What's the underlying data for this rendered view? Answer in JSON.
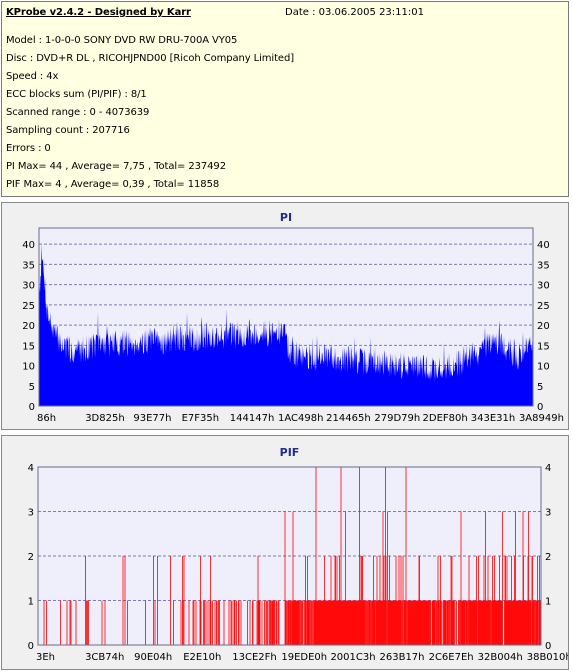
{
  "header": {
    "app_title": "KProbe v2.4.2 - Designed by Karr",
    "date": "Date : 03.06.2005 23:11:01"
  },
  "info_lines": [
    "Model : 1-0-0-0 SONY     DVD RW DRU-700A  VY05",
    "Disc : DVD+R DL , RICOHJPND00 [Ricoh Company Limited]",
    "Speed : 4x",
    "ECC blocks sum (PI/PIF) : 8/1",
    "Scanned range : 0 - 4073639",
    "Sampling count : 207716",
    "Errors : 0",
    "PI Max= 44 , Average= 7,75 , Total= 237492",
    "PIF Max= 4 , Average= 0,39 , Total= 11858"
  ],
  "colors": {
    "pi_fill": "#0000ff",
    "pif_fill": "#ff0000",
    "plot_bg": "#efeffb",
    "grid": "#7b7bbd",
    "panel_bg": "#f0f0f0",
    "info_bg": "#ffffe1",
    "title": "#1f2e8c"
  },
  "chart_data": [
    {
      "type": "area",
      "title": "PI",
      "xlabel": "",
      "ylabel": "",
      "ylim": [
        0,
        44
      ],
      "yticks": [
        0,
        5,
        10,
        15,
        20,
        25,
        30,
        35,
        40
      ],
      "xtick_labels": [
        "86h",
        "3D825h",
        "93E77h",
        "E7F35h",
        "144147h",
        "1AC498h",
        "214465h",
        "279D79h",
        "2DEF80h",
        "343E31h",
        "3A8949h"
      ],
      "grid": true,
      "legend": "none",
      "series": [
        {
          "profile": [
            [
              0.0,
              27
            ],
            [
              0.005,
              37
            ],
            [
              0.01,
              33
            ],
            [
              0.016,
              24
            ],
            [
              0.025,
              20
            ],
            [
              0.035,
              17
            ],
            [
              0.05,
              15
            ],
            [
              0.065,
              13.5
            ],
            [
              0.085,
              14
            ],
            [
              0.11,
              15
            ],
            [
              0.14,
              15.5
            ],
            [
              0.18,
              15.5
            ],
            [
              0.22,
              16
            ],
            [
              0.26,
              16
            ],
            [
              0.3,
              16.5
            ],
            [
              0.34,
              17
            ],
            [
              0.38,
              17.5
            ],
            [
              0.42,
              17.5
            ],
            [
              0.46,
              18
            ],
            [
              0.5,
              18
            ],
            [
              0.505,
              13
            ],
            [
              0.55,
              12
            ],
            [
              0.6,
              12
            ],
            [
              0.65,
              11
            ],
            [
              0.7,
              10.5
            ],
            [
              0.75,
              10
            ],
            [
              0.8,
              9
            ],
            [
              0.84,
              10
            ],
            [
              0.87,
              12
            ],
            [
              0.9,
              14
            ],
            [
              0.93,
              16
            ],
            [
              0.95,
              14
            ],
            [
              0.97,
              12
            ],
            [
              0.985,
              14
            ],
            [
              1.0,
              16
            ]
          ],
          "noise": 3.5,
          "spike_prob": 0.05,
          "spike_size": 5
        }
      ]
    },
    {
      "type": "bar",
      "title": "PIF",
      "xlabel": "",
      "ylabel": "",
      "ylim": [
        0,
        4
      ],
      "yticks": [
        0,
        1,
        2,
        3,
        4
      ],
      "xtick_labels": [
        "3Eh",
        "3CB74h",
        "90E04h",
        "E2E10h",
        "13CE2Fh",
        "19EDE0h",
        "2001C3h",
        "263B17h",
        "2C6E7Eh",
        "32B004h",
        "38B010h"
      ],
      "grid": true,
      "legend": "none",
      "series": [
        {
          "segments": [
            [
              0.0,
              0.3,
              0.05,
              0.02,
              0.0,
              0.0
            ],
            [
              0.3,
              0.49,
              0.26,
              0.03,
              0.004,
              0.0
            ],
            [
              0.49,
              0.56,
              0.75,
              0.07,
              0.015,
              0.004
            ],
            [
              0.56,
              0.78,
              0.85,
              0.1,
              0.022,
              0.006
            ],
            [
              0.78,
              0.85,
              0.65,
              0.07,
              0.012,
              0.002
            ],
            [
              0.85,
              1.0,
              0.8,
              0.13,
              0.02,
              0.004
            ]
          ]
        }
      ]
    }
  ]
}
